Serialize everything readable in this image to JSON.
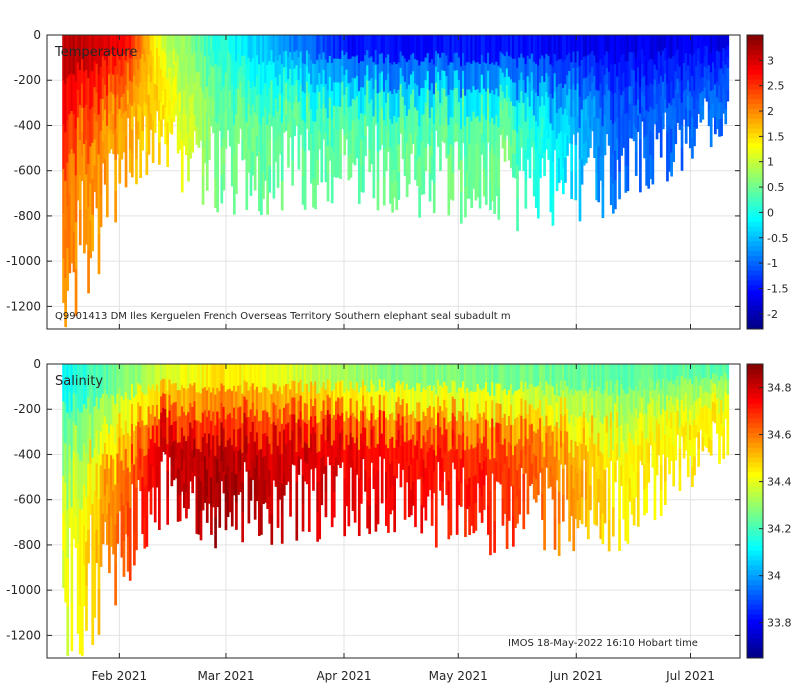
{
  "chart_data": [
    {
      "type": "heatmap",
      "title": "Temperature",
      "annotation": "Q9901413 DM Iles Kerguelen French Overseas Territory Southern elephant seal subadult m",
      "xlabel": "",
      "ylabel": "",
      "x_tick_labels": [
        "Feb 2021",
        "Mar 2021",
        "Apr 2021",
        "May 2021",
        "Jun 2021",
        "Jul 2021"
      ],
      "x_tick_days": [
        19,
        47,
        78,
        108,
        139,
        169
      ],
      "xlim_days": [
        0,
        182
      ],
      "y_ticks": [
        0,
        -200,
        -400,
        -600,
        -800,
        -1000,
        -1200
      ],
      "ylim": [
        -1300,
        0
      ],
      "colorbar": {
        "ticks": [
          3,
          2.5,
          2,
          1.5,
          1,
          0.5,
          0,
          -0.5,
          -1,
          -1.5,
          -2
        ],
        "range": [
          -2.3,
          3.5
        ]
      },
      "profiles_summary": [
        {
          "day": 6,
          "max_depth": 1300,
          "surface_value": 3.3,
          "deep_value": 2.0
        },
        {
          "day": 20,
          "max_depth": 650,
          "surface_value": 3.0,
          "deep_value": 1.8
        },
        {
          "day": 30,
          "max_depth": 600,
          "surface_value": 1.0,
          "deep_value": 1.5
        },
        {
          "day": 45,
          "max_depth": 750,
          "surface_value": 0.0,
          "deep_value": 0.5
        },
        {
          "day": 80,
          "max_depth": 700,
          "surface_value": -1.8,
          "deep_value": 0.4
        },
        {
          "day": 120,
          "max_depth": 800,
          "surface_value": -1.8,
          "deep_value": 0.5
        },
        {
          "day": 150,
          "max_depth": 750,
          "surface_value": -1.8,
          "deep_value": -1.0
        },
        {
          "day": 178,
          "max_depth": 400,
          "surface_value": -1.8,
          "deep_value": -1.0
        }
      ]
    },
    {
      "type": "heatmap",
      "title": "Salinity",
      "annotation": "IMOS 18-May-2022 16:10 Hobart time",
      "xlabel": "",
      "ylabel": "",
      "x_tick_labels": [
        "Feb 2021",
        "Mar 2021",
        "Apr 2021",
        "May 2021",
        "Jun 2021",
        "Jul 2021"
      ],
      "x_tick_days": [
        19,
        47,
        78,
        108,
        139,
        169
      ],
      "xlim_days": [
        0,
        182
      ],
      "y_ticks": [
        0,
        -200,
        -400,
        -600,
        -800,
        -1000,
        -1200
      ],
      "ylim": [
        -1300,
        0
      ],
      "colorbar": {
        "ticks": [
          34.8,
          34.6,
          34.4,
          34.2,
          34,
          33.8
        ],
        "range": [
          33.65,
          34.9
        ]
      },
      "profiles_summary": [
        {
          "day": 6,
          "max_depth": 1300,
          "surface_value": 34.1,
          "deep_value": 34.4
        },
        {
          "day": 30,
          "max_depth": 650,
          "surface_value": 34.3,
          "deep_value": 34.8
        },
        {
          "day": 45,
          "max_depth": 750,
          "surface_value": 34.4,
          "deep_value": 34.85
        },
        {
          "day": 90,
          "max_depth": 700,
          "surface_value": 34.2,
          "deep_value": 34.75
        },
        {
          "day": 120,
          "max_depth": 800,
          "surface_value": 34.2,
          "deep_value": 34.7
        },
        {
          "day": 150,
          "max_depth": 750,
          "surface_value": 34.2,
          "deep_value": 34.45
        },
        {
          "day": 178,
          "max_depth": 400,
          "surface_value": 34.2,
          "deep_value": 34.45
        }
      ]
    }
  ]
}
